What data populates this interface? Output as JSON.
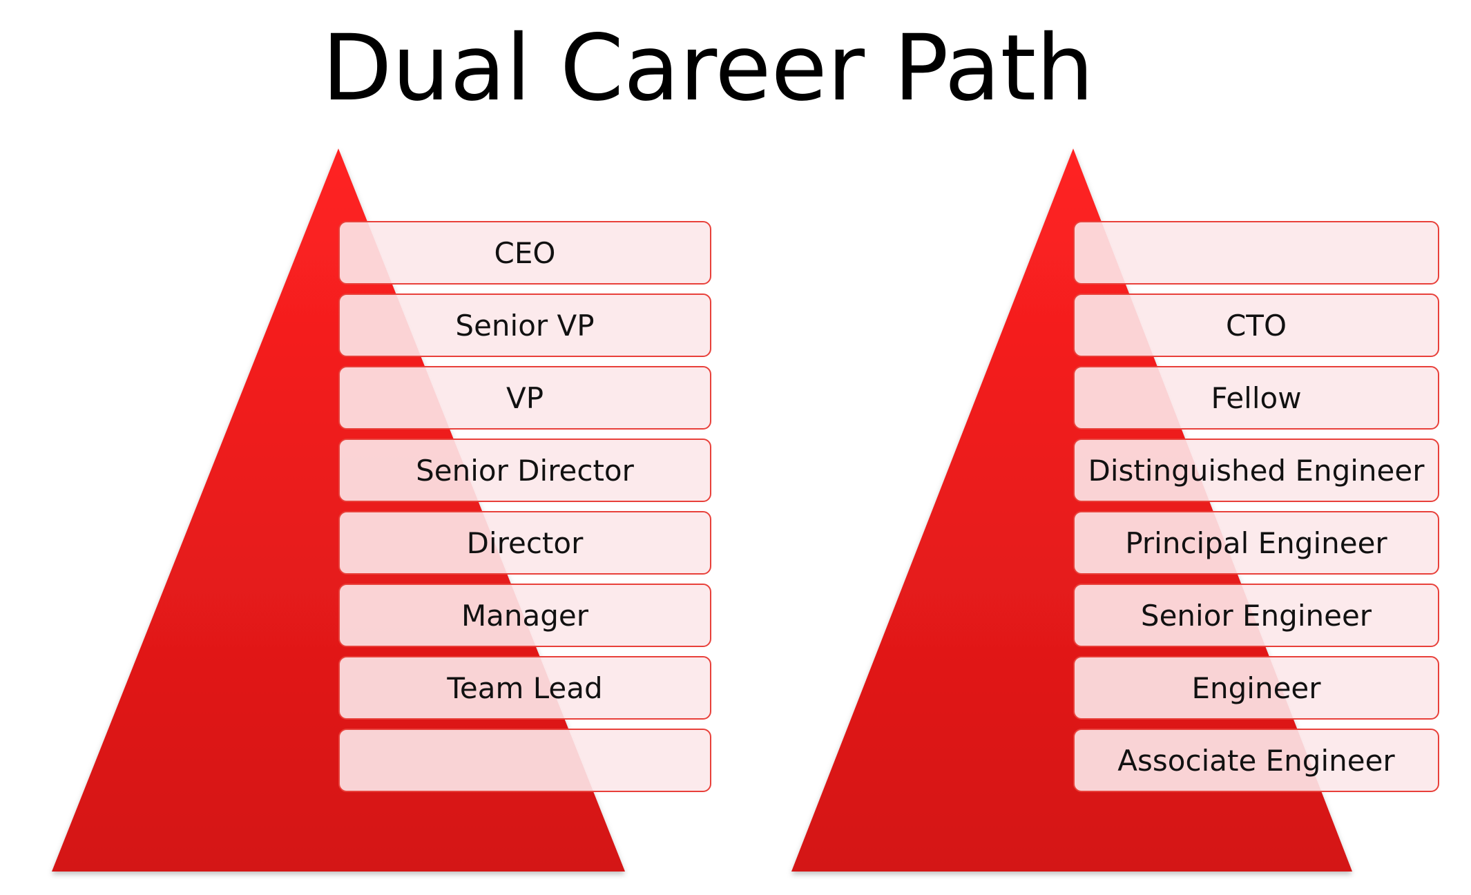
{
  "title": "Dual Career Path",
  "colors": {
    "pyramid_top": "#ff2222",
    "pyramid_bottom": "#d41515",
    "box_border": "#e8403a",
    "box_fill": "#fce8ea"
  },
  "management_track": {
    "levels": [
      "CEO",
      "Senior VP",
      "VP",
      "Senior Director",
      "Director",
      "Manager",
      "Team Lead",
      ""
    ]
  },
  "technical_track": {
    "levels": [
      "",
      "CTO",
      "Fellow",
      "Distinguished Engineer",
      "Principal Engineer",
      "Senior Engineer",
      "Engineer",
      "Associate Engineer"
    ]
  }
}
